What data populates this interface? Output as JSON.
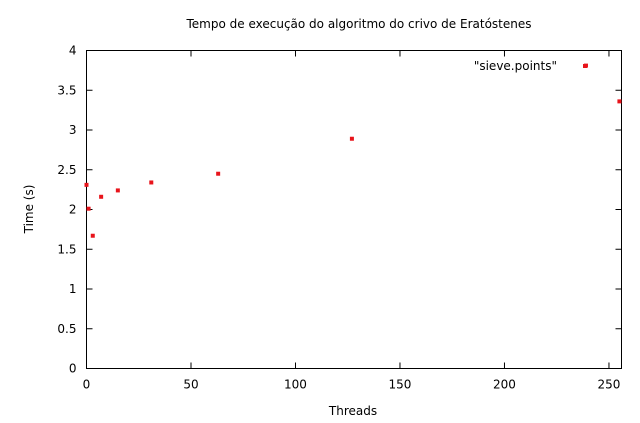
{
  "chart_data": {
    "type": "scatter",
    "title": "Tempo de execução do algoritmo do crivo de Eratóstenes",
    "xlabel": "Threads",
    "ylabel": "Time (s)",
    "xlim": [
      0,
      256
    ],
    "ylim": [
      0,
      4
    ],
    "x_ticks": [
      0,
      50,
      100,
      150,
      200,
      250
    ],
    "x_tick_labels": [
      "0",
      "50",
      "100",
      "150",
      "200",
      "250"
    ],
    "y_ticks": [
      0,
      0.5,
      1,
      1.5,
      2,
      2.5,
      3,
      3.5,
      4
    ],
    "y_tick_labels": [
      "0",
      "0.5",
      "1",
      "1.5",
      "2",
      "2.5",
      "3",
      "3.5",
      "4"
    ],
    "grid": false,
    "legend_position": "top-right",
    "series": [
      {
        "name": "\"sieve.points\"",
        "color": "#e8141b",
        "x": [
          0,
          1,
          3,
          7,
          15,
          31,
          63,
          127,
          239,
          255
        ],
        "y": [
          2.31,
          2.01,
          1.67,
          2.16,
          2.24,
          2.34,
          2.45,
          2.89,
          3.81,
          3.36
        ]
      }
    ]
  }
}
